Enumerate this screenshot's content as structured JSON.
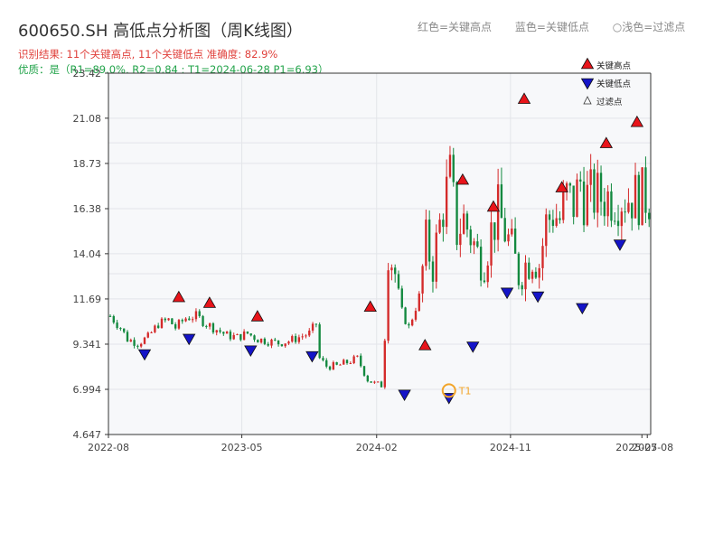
{
  "header": {
    "title": "600650.SH 高低点分析图（周K线图）",
    "result_text": "识别结果: 11个关键高点, 11个关键低点  准确度: 82.9%",
    "quality_text": "优质：是（R1=89.0%, R2=0.84 ; T1=2024-06-28 P1=6.93）"
  },
  "top_legend": [
    "红色=关键高点",
    "蓝色=关键低点",
    "○浅色=过滤点"
  ],
  "colors": {
    "up": "#d42a2a",
    "down": "#13893f",
    "high_marker": "#e8141a",
    "low_marker": "#1414c8",
    "t1_ring": "#f2a52a",
    "plot_bg": "#f7f8fa",
    "grid": "#e3e5e9"
  },
  "chart_data": {
    "type": "candlestick",
    "title": "600650.SH 高低点分析图（周K线图）",
    "y_ticks": [
      "4.647",
      "6.994",
      "9.341",
      "11.69",
      "14.04",
      "16.38",
      "18.73",
      "21.08",
      "23.42"
    ],
    "ylim": [
      4.647,
      23.42
    ],
    "x_ticks": [
      "2022-08",
      "2023-05",
      "2024-02",
      "2024-11",
      "2025-07",
      "2025-08"
    ],
    "x_range": [
      "2022-08-01",
      "2025-08-15"
    ],
    "grid": true,
    "legend": {
      "placement": "top-right",
      "entries": [
        "关键高点",
        "关键低点",
        "过滤点"
      ]
    },
    "key_highs": [
      {
        "date": "2022-12-23",
        "value": 11.4
      },
      {
        "date": "2023-02-24",
        "value": 11.1
      },
      {
        "date": "2023-06-02",
        "value": 10.4
      },
      {
        "date": "2024-01-19",
        "value": 10.9
      },
      {
        "date": "2024-05-10",
        "value": 8.9
      },
      {
        "date": "2024-07-26",
        "value": 17.5
      },
      {
        "date": "2024-09-27",
        "value": 16.1
      },
      {
        "date": "2024-11-29",
        "value": 21.7
      },
      {
        "date": "2025-02-14",
        "value": 17.1
      },
      {
        "date": "2025-05-16",
        "value": 19.4
      },
      {
        "date": "2025-07-18",
        "value": 20.5
      }
    ],
    "key_lows": [
      {
        "date": "2022-10-14",
        "value": 9.2
      },
      {
        "date": "2023-01-13",
        "value": 10.0
      },
      {
        "date": "2023-05-19",
        "value": 9.4
      },
      {
        "date": "2023-09-22",
        "value": 9.1
      },
      {
        "date": "2024-03-29",
        "value": 7.1
      },
      {
        "date": "2024-06-28",
        "value": 6.93
      },
      {
        "date": "2024-08-16",
        "value": 9.6
      },
      {
        "date": "2024-10-25",
        "value": 12.4
      },
      {
        "date": "2024-12-27",
        "value": 12.2
      },
      {
        "date": "2025-03-28",
        "value": 11.6
      },
      {
        "date": "2025-06-13",
        "value": 14.9
      }
    ],
    "t1": {
      "label": "T1",
      "date": "2024-06-28",
      "value": 6.93
    },
    "candles_approx": {
      "weeks": 158,
      "shape_points": [
        [
          0,
          10.8
        ],
        [
          3,
          10.2
        ],
        [
          5,
          9.6
        ],
        [
          8,
          9.4
        ],
        [
          11,
          9.7
        ],
        [
          14,
          10.4
        ],
        [
          17,
          10.6
        ],
        [
          19,
          10.2
        ],
        [
          22,
          10.7
        ],
        [
          25,
          10.8
        ],
        [
          28,
          10.4
        ],
        [
          31,
          10.1
        ],
        [
          34,
          9.8
        ],
        [
          37,
          9.7
        ],
        [
          40,
          9.9
        ],
        [
          43,
          9.6
        ],
        [
          46,
          9.5
        ],
        [
          49,
          9.4
        ],
        [
          52,
          9.5
        ],
        [
          55,
          9.7
        ],
        [
          58,
          9.9
        ],
        [
          60,
          10.4
        ],
        [
          61,
          8.6
        ],
        [
          63,
          8.2
        ],
        [
          66,
          8.2
        ],
        [
          69,
          8.4
        ],
        [
          72,
          8.6
        ],
        [
          75,
          7.5
        ],
        [
          77,
          7.3
        ],
        [
          79,
          7.2
        ],
        [
          80,
          9.7
        ],
        [
          81,
          14.4
        ],
        [
          83,
          13.0
        ],
        [
          85,
          11.0
        ],
        [
          87,
          10.2
        ],
        [
          90,
          11.8
        ],
        [
          92,
          14.6
        ],
        [
          94,
          13.5
        ],
        [
          97,
          16.5
        ],
        [
          99,
          18.0
        ],
        [
          101,
          15.2
        ],
        [
          103,
          15.8
        ],
        [
          105,
          15.0
        ],
        [
          107,
          14.0
        ],
        [
          109,
          13.8
        ],
        [
          111,
          15.2
        ],
        [
          113,
          16.2
        ],
        [
          115,
          15.2
        ],
        [
          117,
          14.2
        ],
        [
          119,
          13.0
        ],
        [
          121,
          13.5
        ],
        [
          123,
          14.0
        ],
        [
          125,
          13.5
        ],
        [
          127,
          15.6
        ],
        [
          129,
          16.2
        ],
        [
          131,
          15.8
        ],
        [
          133,
          17.0
        ],
        [
          135,
          16.6
        ],
        [
          137,
          17.8
        ],
        [
          138,
          17.0
        ]
      ]
    }
  }
}
